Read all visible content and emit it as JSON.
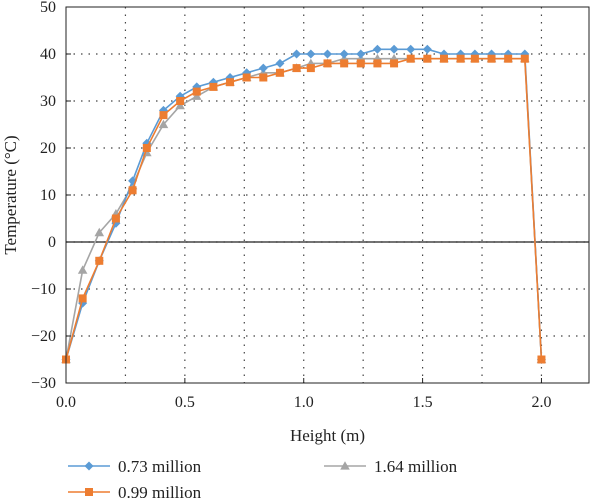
{
  "chart_data": {
    "type": "line",
    "xlabel": "Height (m)",
    "ylabel": "Temperature (°C)",
    "xlim": [
      0,
      2.2
    ],
    "ylim": [
      -30,
      50
    ],
    "x_ticks": [
      "0.0",
      "0.5",
      "1.0",
      "1.5",
      "2.0"
    ],
    "y_ticks": [
      "50",
      "40",
      "30",
      "20",
      "10",
      "0",
      "−10",
      "−20",
      "−30"
    ],
    "grid": true,
    "legend_position": "bottom",
    "series": [
      {
        "name": "0.73 million",
        "color": "#5b9bd5",
        "marker": "diamond",
        "x": [
          0.0,
          0.07,
          0.14,
          0.21,
          0.28,
          0.34,
          0.41,
          0.48,
          0.55,
          0.62,
          0.69,
          0.76,
          0.83,
          0.9,
          0.97,
          1.03,
          1.1,
          1.17,
          1.24,
          1.31,
          1.38,
          1.45,
          1.52,
          1.59,
          1.66,
          1.72,
          1.79,
          1.86,
          1.93,
          2.0
        ],
        "y": [
          -25,
          -13,
          -4,
          4,
          13,
          21,
          28,
          31,
          33,
          34,
          35,
          36,
          37,
          38,
          40,
          40,
          40,
          40,
          40,
          41,
          41,
          41,
          41,
          40,
          40,
          40,
          40,
          40,
          40,
          -25
        ]
      },
      {
        "name": "0.99 million",
        "color": "#ed7d31",
        "marker": "square",
        "x": [
          0.0,
          0.07,
          0.14,
          0.21,
          0.28,
          0.34,
          0.41,
          0.48,
          0.55,
          0.62,
          0.69,
          0.76,
          0.83,
          0.9,
          0.97,
          1.03,
          1.1,
          1.17,
          1.24,
          1.31,
          1.38,
          1.45,
          1.52,
          1.59,
          1.66,
          1.72,
          1.79,
          1.86,
          1.93,
          2.0
        ],
        "y": [
          -25,
          -12,
          -4,
          5,
          11,
          20,
          27,
          30,
          32,
          33,
          34,
          35,
          35,
          36,
          37,
          37,
          38,
          38,
          38,
          38,
          38,
          39,
          39,
          39,
          39,
          39,
          39,
          39,
          39,
          -25
        ]
      },
      {
        "name": "1.64 million",
        "color": "#a5a5a5",
        "marker": "triangle",
        "x": [
          0.0,
          0.07,
          0.14,
          0.21,
          0.28,
          0.34,
          0.41,
          0.48,
          0.55,
          0.62,
          0.69,
          0.76,
          0.83,
          0.9,
          0.97,
          1.03,
          1.1,
          1.17,
          1.24,
          1.31,
          1.38,
          1.45,
          1.52,
          1.59,
          1.66,
          1.72,
          1.79,
          1.86,
          1.93,
          2.0
        ],
        "y": [
          -25,
          -6,
          2,
          6,
          12,
          19,
          25,
          29,
          31,
          33,
          34,
          35,
          36,
          36,
          37,
          38,
          38,
          39,
          39,
          39,
          39,
          39,
          39,
          39,
          39,
          39,
          39,
          39,
          39,
          -25
        ]
      }
    ]
  }
}
